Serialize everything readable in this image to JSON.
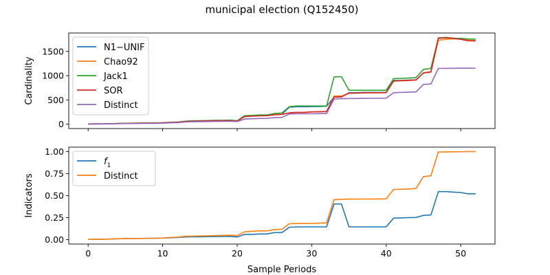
{
  "figure": {
    "title": "municipal election (Q152450)",
    "xlabel": "Sample Periods"
  },
  "colors": {
    "blue": "#1f77b4",
    "orange": "#ff7f0e",
    "green": "#2ca02c",
    "red": "#d62728",
    "purple": "#9467bd"
  },
  "chart_data": [
    {
      "type": "line",
      "ylabel": "Cardinality",
      "xlim": [
        -2.6,
        54.6
      ],
      "ylim": [
        -90,
        1880
      ],
      "xticks": [
        0,
        10,
        20,
        30,
        40,
        50
      ],
      "yticks": [
        0,
        500,
        1000,
        1500
      ],
      "xtick_labels_visible": false,
      "legend": "upper-left",
      "x": [
        0,
        1,
        2,
        3,
        4,
        5,
        6,
        7,
        8,
        9,
        10,
        11,
        12,
        13,
        14,
        15,
        16,
        17,
        18,
        19,
        20,
        21,
        22,
        23,
        24,
        25,
        26,
        27,
        28,
        29,
        30,
        31,
        32,
        33,
        34,
        35,
        36,
        37,
        38,
        39,
        40,
        41,
        42,
        43,
        44,
        45,
        46,
        47,
        48,
        49,
        50,
        51,
        52
      ],
      "series": [
        {
          "name": "N1−UNIF",
          "color_key": "blue",
          "values": [
            5,
            6,
            7,
            9,
            13,
            17,
            19,
            20,
            22,
            24,
            27,
            35,
            40,
            55,
            62,
            64,
            68,
            70,
            72,
            75,
            65,
            160,
            168,
            175,
            178,
            200,
            205,
            350,
            360,
            360,
            362,
            365,
            370,
            560,
            560,
            650,
            650,
            655,
            655,
            655,
            658,
            900,
            905,
            910,
            915,
            1060,
            1080,
            1770,
            1785,
            1775,
            1760,
            1725,
            1720
          ]
        },
        {
          "name": "Chao92",
          "color_key": "orange",
          "values": [
            5,
            6,
            7,
            9,
            13,
            17,
            19,
            20,
            22,
            24,
            27,
            35,
            40,
            55,
            62,
            64,
            68,
            70,
            72,
            75,
            65,
            160,
            168,
            175,
            178,
            200,
            205,
            230,
            240,
            240,
            250,
            255,
            260,
            580,
            580,
            640,
            640,
            645,
            650,
            650,
            652,
            890,
            900,
            905,
            910,
            1060,
            1080,
            1730,
            1750,
            1760,
            1755,
            1730,
            1725
          ]
        },
        {
          "name": "Jack1",
          "color_key": "green",
          "values": [
            5,
            6,
            7,
            9,
            15,
            19,
            21,
            22,
            25,
            27,
            30,
            40,
            45,
            62,
            70,
            72,
            76,
            78,
            80,
            84,
            70,
            175,
            180,
            190,
            190,
            220,
            230,
            360,
            375,
            375,
            375,
            375,
            375,
            975,
            980,
            700,
            700,
            700,
            700,
            700,
            700,
            940,
            945,
            950,
            960,
            1130,
            1150,
            1780,
            1790,
            1770,
            1770,
            1755,
            1755
          ]
        },
        {
          "name": "SOR",
          "color_key": "red",
          "values": [
            5,
            6,
            7,
            9,
            13,
            17,
            19,
            20,
            22,
            24,
            27,
            35,
            40,
            55,
            62,
            64,
            68,
            70,
            72,
            75,
            65,
            155,
            165,
            172,
            175,
            195,
            200,
            235,
            245,
            245,
            255,
            258,
            262,
            560,
            565,
            640,
            640,
            645,
            648,
            648,
            650,
            890,
            895,
            900,
            910,
            1055,
            1075,
            1775,
            1780,
            1770,
            1750,
            1720,
            1715
          ]
        },
        {
          "name": "Distinct",
          "color_key": "purple",
          "values": [
            3,
            4,
            5,
            7,
            10,
            13,
            14,
            15,
            17,
            18,
            20,
            28,
            32,
            45,
            50,
            52,
            55,
            57,
            59,
            62,
            55,
            105,
            112,
            118,
            120,
            135,
            140,
            210,
            215,
            215,
            215,
            218,
            220,
            520,
            525,
            530,
            530,
            532,
            533,
            533,
            535,
            650,
            655,
            660,
            665,
            820,
            830,
            1150,
            1152,
            1153,
            1155,
            1155,
            1155
          ]
        }
      ]
    },
    {
      "type": "line",
      "ylabel": "Indicators",
      "xlim": [
        -2.6,
        54.6
      ],
      "ylim": [
        -0.05,
        1.05
      ],
      "xticks": [
        0,
        10,
        20,
        30,
        40,
        50
      ],
      "yticks": [
        0.0,
        0.25,
        0.5,
        0.75,
        1.0
      ],
      "ytick_labels": [
        "0.00",
        "0.25",
        "0.50",
        "0.75",
        "1.00"
      ],
      "legend": "upper-left",
      "x": [
        0,
        1,
        2,
        3,
        4,
        5,
        6,
        7,
        8,
        9,
        10,
        11,
        12,
        13,
        14,
        15,
        16,
        17,
        18,
        19,
        20,
        21,
        22,
        23,
        24,
        25,
        26,
        27,
        28,
        29,
        30,
        31,
        32,
        33,
        34,
        35,
        36,
        37,
        38,
        39,
        40,
        41,
        42,
        43,
        44,
        45,
        46,
        47,
        48,
        49,
        50,
        51,
        52
      ],
      "series": [
        {
          "name": "f",
          "name_sub": "1",
          "color_key": "blue",
          "values": [
            0.003,
            0.004,
            0.005,
            0.007,
            0.01,
            0.012,
            0.013,
            0.014,
            0.015,
            0.016,
            0.018,
            0.022,
            0.024,
            0.03,
            0.032,
            0.033,
            0.034,
            0.035,
            0.036,
            0.037,
            0.03,
            0.06,
            0.06,
            0.065,
            0.065,
            0.08,
            0.08,
            0.14,
            0.145,
            0.145,
            0.145,
            0.145,
            0.145,
            0.405,
            0.405,
            0.145,
            0.145,
            0.145,
            0.145,
            0.145,
            0.145,
            0.245,
            0.247,
            0.25,
            0.252,
            0.275,
            0.28,
            0.545,
            0.545,
            0.54,
            0.535,
            0.52,
            0.52
          ]
        },
        {
          "name": "Distinct",
          "color_key": "orange",
          "values": [
            0.003,
            0.004,
            0.005,
            0.007,
            0.01,
            0.012,
            0.013,
            0.014,
            0.015,
            0.016,
            0.018,
            0.025,
            0.028,
            0.038,
            0.04,
            0.042,
            0.044,
            0.046,
            0.048,
            0.05,
            0.045,
            0.09,
            0.095,
            0.1,
            0.1,
            0.115,
            0.118,
            0.18,
            0.183,
            0.183,
            0.185,
            0.187,
            0.19,
            0.455,
            0.458,
            0.46,
            0.46,
            0.461,
            0.462,
            0.462,
            0.463,
            0.57,
            0.572,
            0.575,
            0.58,
            0.715,
            0.725,
            0.995,
            0.996,
            0.997,
            0.998,
            0.999,
            0.999
          ]
        }
      ]
    }
  ]
}
